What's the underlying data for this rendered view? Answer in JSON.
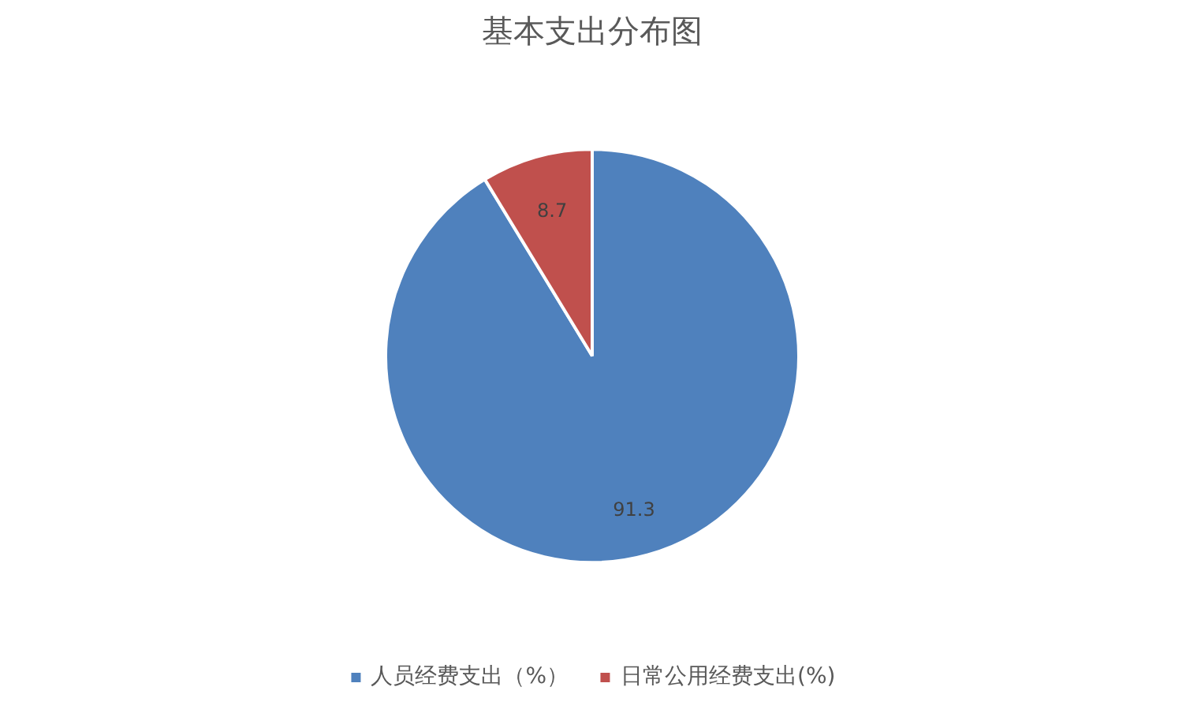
{
  "chart_data": {
    "type": "pie",
    "title": "基本支出分布图",
    "categories": [
      "人员经费支出（%）",
      "日常公用经费支出(%)"
    ],
    "values": [
      91.3,
      8.7
    ],
    "colors": [
      "#4f81bd",
      "#c0504d"
    ],
    "data_labels": true,
    "legend": "bottom"
  }
}
